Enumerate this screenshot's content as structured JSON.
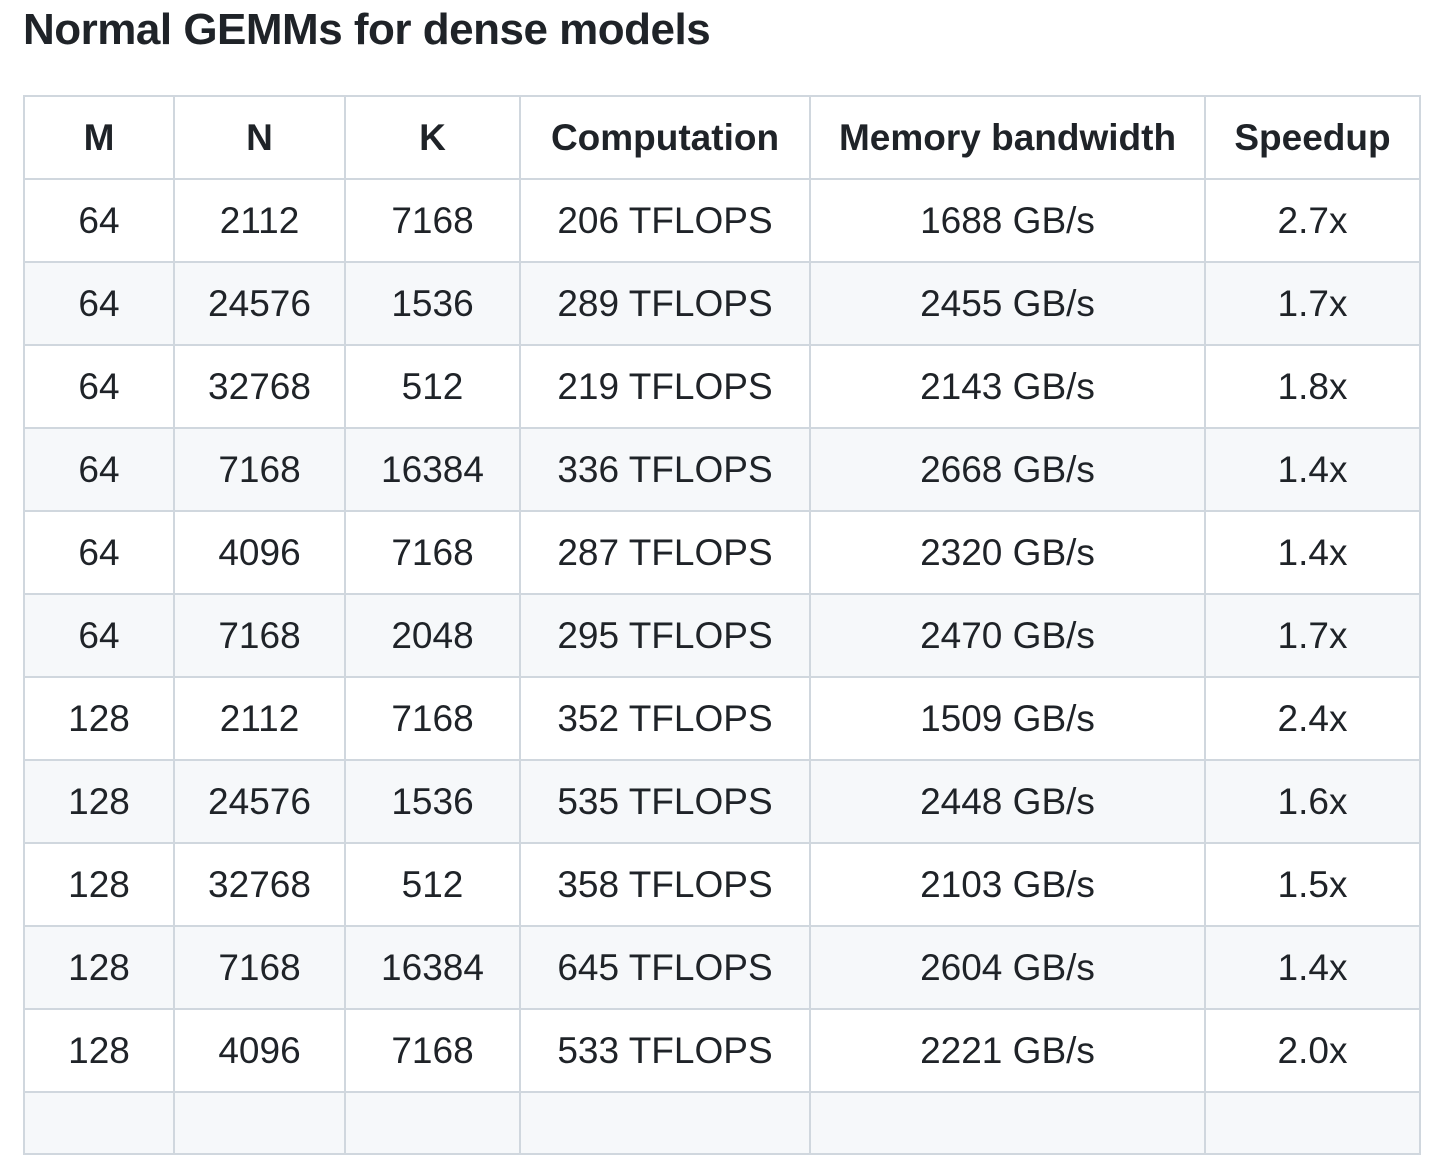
{
  "page": {
    "title": "Normal GEMMs for dense models"
  },
  "table": {
    "columns": [
      "M",
      "N",
      "K",
      "Computation",
      "Memory bandwidth",
      "Speedup"
    ],
    "column_keys": [
      "m",
      "n",
      "k",
      "computation",
      "memory-bandwidth",
      "speedup"
    ],
    "rows": [
      [
        "64",
        "2112",
        "7168",
        "206 TFLOPS",
        "1688 GB/s",
        "2.7x"
      ],
      [
        "64",
        "24576",
        "1536",
        "289 TFLOPS",
        "2455 GB/s",
        "1.7x"
      ],
      [
        "64",
        "32768",
        "512",
        "219 TFLOPS",
        "2143 GB/s",
        "1.8x"
      ],
      [
        "64",
        "7168",
        "16384",
        "336 TFLOPS",
        "2668 GB/s",
        "1.4x"
      ],
      [
        "64",
        "4096",
        "7168",
        "287 TFLOPS",
        "2320 GB/s",
        "1.4x"
      ],
      [
        "64",
        "7168",
        "2048",
        "295 TFLOPS",
        "2470 GB/s",
        "1.7x"
      ],
      [
        "128",
        "2112",
        "7168",
        "352 TFLOPS",
        "1509 GB/s",
        "2.4x"
      ],
      [
        "128",
        "24576",
        "1536",
        "535 TFLOPS",
        "2448 GB/s",
        "1.6x"
      ],
      [
        "128",
        "32768",
        "512",
        "358 TFLOPS",
        "2103 GB/s",
        "1.5x"
      ],
      [
        "128",
        "7168",
        "16384",
        "645 TFLOPS",
        "2604 GB/s",
        "1.4x"
      ],
      [
        "128",
        "4096",
        "7168",
        "533 TFLOPS",
        "2221 GB/s",
        "2.0x"
      ]
    ],
    "partial_row_visible": true
  },
  "chart_data": {
    "type": "table",
    "title": "Normal GEMMs for dense models",
    "columns": [
      "M",
      "N",
      "K",
      "Computation",
      "Memory bandwidth",
      "Speedup"
    ],
    "rows": [
      [
        64,
        2112,
        7168,
        "206 TFLOPS",
        "1688 GB/s",
        "2.7x"
      ],
      [
        64,
        24576,
        1536,
        "289 TFLOPS",
        "2455 GB/s",
        "1.7x"
      ],
      [
        64,
        32768,
        512,
        "219 TFLOPS",
        "2143 GB/s",
        "1.8x"
      ],
      [
        64,
        7168,
        16384,
        "336 TFLOPS",
        "2668 GB/s",
        "1.4x"
      ],
      [
        64,
        4096,
        7168,
        "287 TFLOPS",
        "2320 GB/s",
        "1.4x"
      ],
      [
        64,
        7168,
        2048,
        "295 TFLOPS",
        "2470 GB/s",
        "1.7x"
      ],
      [
        128,
        2112,
        7168,
        "352 TFLOPS",
        "1509 GB/s",
        "2.4x"
      ],
      [
        128,
        24576,
        1536,
        "535 TFLOPS",
        "2448 GB/s",
        "1.6x"
      ],
      [
        128,
        32768,
        512,
        "358 TFLOPS",
        "2103 GB/s",
        "1.5x"
      ],
      [
        128,
        7168,
        16384,
        "645 TFLOPS",
        "2604 GB/s",
        "1.4x"
      ],
      [
        128,
        4096,
        7168,
        "533 TFLOPS",
        "2221 GB/s",
        "2.0x"
      ]
    ]
  },
  "colors": {
    "text": "#1f2328",
    "border": "#d0d7de",
    "row_alt_bg": "#f6f8fa",
    "background": "#ffffff"
  }
}
